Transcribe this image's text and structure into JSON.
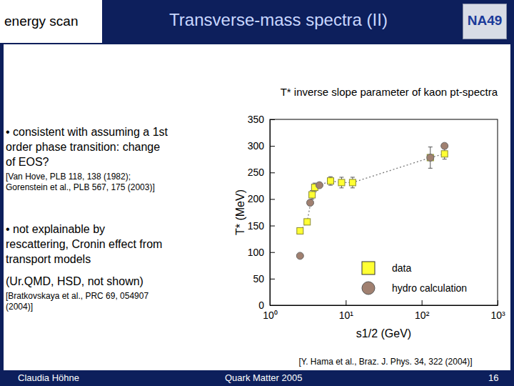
{
  "slide": {
    "corner_label": "energy scan",
    "title": "Transverse-mass spectra (II)",
    "logo": "NA49",
    "bullets": [
      {
        "lines": [
          "• consistent with assuming a 1st",
          "order phase transition: change",
          "of EOS?"
        ],
        "ref": [
          "[Van Hove, PLB 118, 138 (1982);",
          "Gorenstein et al., PLB 567, 175 (2003)]"
        ]
      },
      {
        "lines": [
          "• not explainable by",
          "rescattering, Cronin effect from",
          "transport models"
        ],
        "note": "(Ur.QMD, HSD, not shown)",
        "ref": [
          "[Bratkovskaya et al., PRC 69, 054907",
          "(2004)]"
        ]
      }
    ],
    "footer": {
      "author": "Claudia Höhne",
      "event": "Quark Matter 2005",
      "page": "16"
    }
  },
  "chart_data": {
    "type": "scatter",
    "title": "T* inverse slope parameter of kaon pt-spectra",
    "x_label": "s1/2 (GeV)",
    "y_label": "T* (MeV)",
    "log": "x",
    "xlim": [
      1,
      1000
    ],
    "xticks": [
      {
        "value": 1,
        "label": "10⁰"
      },
      {
        "value": 10,
        "label": "10¹"
      },
      {
        "value": 100,
        "label": "10²"
      },
      {
        "value": 1000,
        "label": "10³"
      }
    ],
    "ylim": [
      0,
      350
    ],
    "yticks": [
      0,
      50,
      100,
      150,
      200,
      250,
      300,
      350
    ],
    "legend": "lower right",
    "series": [
      {
        "name": "data",
        "color": "#ffff33",
        "marker": "square",
        "line_style": "dotted",
        "x": [
          2.5,
          3.1,
          3.6,
          3.9,
          6.3,
          8.8,
          12.3,
          130,
          200
        ],
        "values": [
          140,
          157,
          208,
          222,
          234,
          231,
          231,
          278,
          285
        ],
        "errors": [
          4,
          5,
          8,
          8,
          8,
          10,
          10,
          20,
          10
        ]
      },
      {
        "name": "hydro calculation",
        "color": "#a08070",
        "marker": "circle",
        "x": [
          2.5,
          3.4,
          4.5,
          130,
          200
        ],
        "values": [
          93,
          193,
          226,
          278,
          300
        ]
      }
    ],
    "source": "[Y. Hama et al., Braz. J. Phys. 34, 322 (2004)]"
  }
}
